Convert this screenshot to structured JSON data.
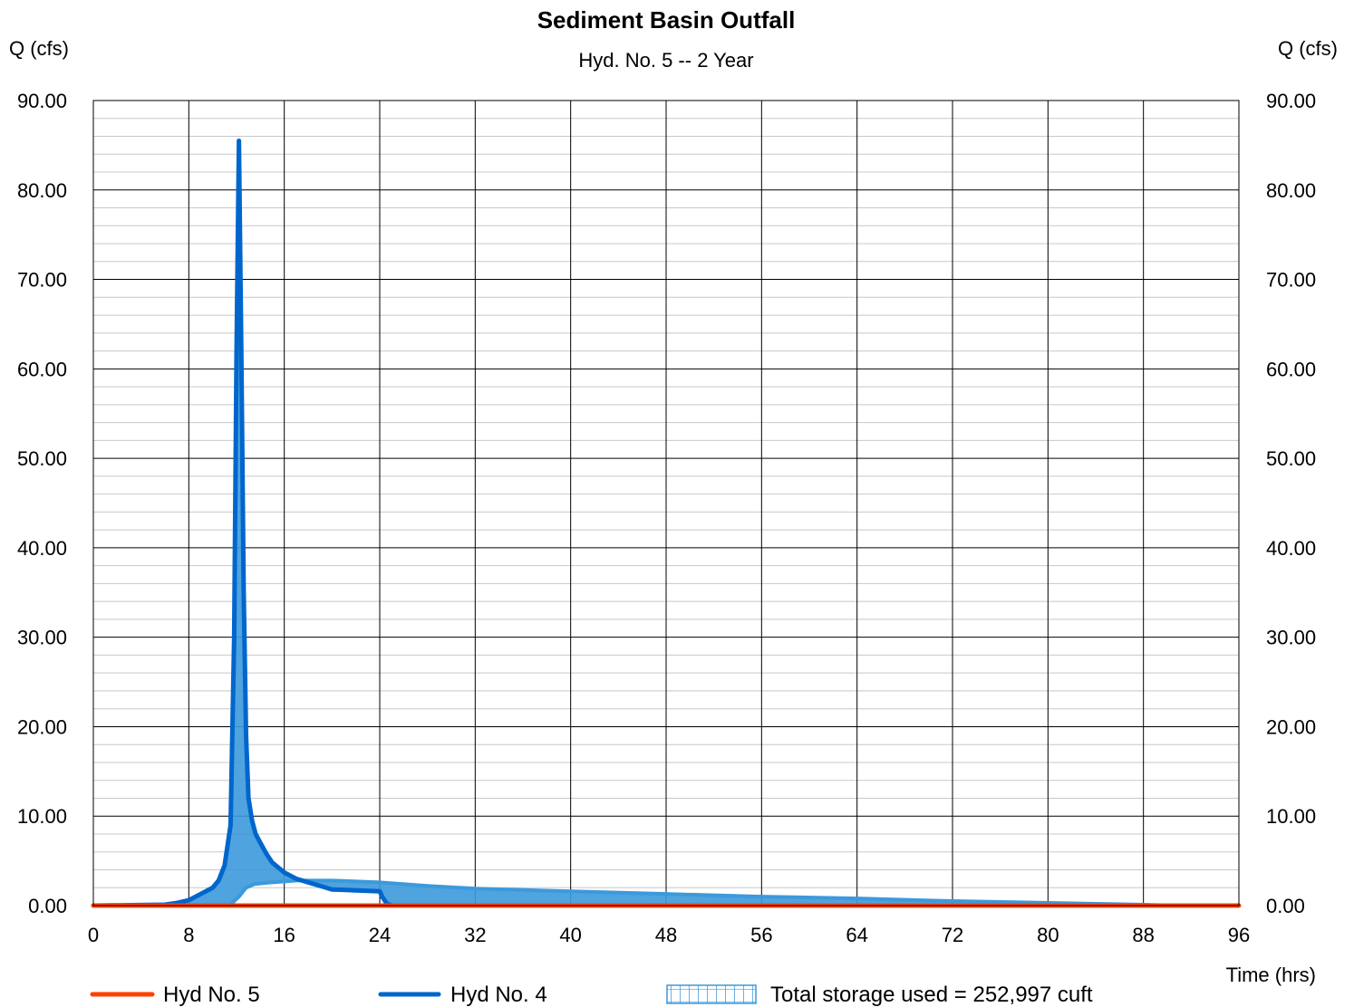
{
  "chart_data": {
    "type": "line",
    "title": "Sediment Basin Outfall",
    "subtitle": "Hyd. No. 5 -- 2 Year",
    "ylabel_left": "Q (cfs)",
    "ylabel_right": "Q (cfs)",
    "xlabel": "Time (hrs)",
    "xlim": [
      0,
      96
    ],
    "ylim": [
      0,
      90
    ],
    "x_ticks": [
      0,
      8,
      16,
      24,
      32,
      40,
      48,
      56,
      64,
      72,
      80,
      88,
      96
    ],
    "y_ticks": [
      0,
      10,
      20,
      30,
      40,
      50,
      60,
      70,
      80,
      90
    ],
    "y_tick_labels": [
      "0.00",
      "10.00",
      "20.00",
      "30.00",
      "40.00",
      "50.00",
      "60.00",
      "70.00",
      "80.00",
      "90.00"
    ],
    "grid": true,
    "minor_y_grid_step": 2,
    "series": [
      {
        "name": "Hyd No. 5",
        "color": "#ff4000",
        "x": [
          0,
          96
        ],
        "y": [
          0,
          0
        ]
      },
      {
        "name": "Hyd No. 4",
        "color": "#0066cc",
        "x": [
          0,
          6,
          7,
          8,
          9,
          10,
          10.5,
          11,
          11.5,
          11.8,
          12.0,
          12.2,
          12.4,
          12.6,
          12.8,
          13.0,
          13.3,
          13.6,
          14,
          14.5,
          15,
          16,
          17,
          18,
          19,
          20,
          22,
          24,
          24.2,
          24.6,
          25
        ],
        "y": [
          0,
          0.1,
          0.3,
          0.6,
          1.3,
          2.0,
          2.8,
          4.5,
          9.0,
          30.0,
          62.0,
          85.5,
          62.0,
          35.0,
          19.0,
          12.0,
          9.5,
          8.0,
          7.0,
          5.8,
          4.8,
          3.7,
          3.0,
          2.6,
          2.2,
          1.8,
          1.7,
          1.6,
          1.0,
          0.2,
          0
        ]
      }
    ],
    "storage_area": {
      "name": "Total storage used = 252,997 cuft",
      "color": "#3c99dc",
      "outflow_curve": {
        "x": [
          0,
          11.4,
          12.2,
          12.8,
          13.5,
          15,
          17,
          20,
          24,
          28,
          32,
          40,
          48,
          56,
          64,
          72,
          80,
          88,
          91
        ],
        "y": [
          0,
          0,
          1.0,
          2.0,
          2.4,
          2.6,
          2.8,
          2.8,
          2.6,
          2.2,
          1.9,
          1.6,
          1.3,
          1.0,
          0.8,
          0.5,
          0.3,
          0.1,
          0
        ]
      }
    },
    "legend": [
      {
        "label": "Hyd No. 5",
        "kind": "line",
        "color": "#ff4000"
      },
      {
        "label": "Hyd No. 4",
        "kind": "line",
        "color": "#0066cc"
      },
      {
        "label": "Total storage used = 252,997 cuft",
        "kind": "hatch",
        "color": "#3c99dc"
      }
    ],
    "legend_placement": "bottom"
  }
}
